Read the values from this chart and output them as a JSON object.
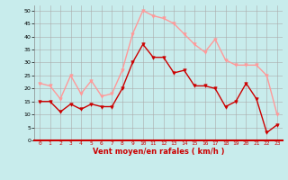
{
  "xlabel": "Vent moyen/en rafales ( km/h )",
  "x": [
    0,
    1,
    2,
    3,
    4,
    5,
    6,
    7,
    8,
    9,
    10,
    11,
    12,
    13,
    14,
    15,
    16,
    17,
    18,
    19,
    20,
    21,
    22,
    23
  ],
  "mean_wind": [
    15,
    15,
    11,
    14,
    12,
    14,
    13,
    13,
    20,
    30,
    37,
    32,
    32,
    26,
    27,
    21,
    21,
    20,
    13,
    15,
    22,
    16,
    3,
    6
  ],
  "gust_wind": [
    22,
    21,
    16,
    25,
    18,
    23,
    17,
    18,
    27,
    41,
    50,
    48,
    47,
    45,
    41,
    37,
    34,
    39,
    31,
    29,
    29,
    29,
    25,
    10
  ],
  "mean_color": "#cc0000",
  "gust_color": "#ff9999",
  "bg_color": "#c8ecec",
  "grid_color": "#aaaaaa",
  "ylim": [
    0,
    52
  ],
  "yticks": [
    0,
    5,
    10,
    15,
    20,
    25,
    30,
    35,
    40,
    45,
    50
  ],
  "xticks": [
    0,
    1,
    2,
    3,
    4,
    5,
    6,
    7,
    8,
    9,
    10,
    11,
    12,
    13,
    14,
    15,
    16,
    17,
    18,
    19,
    20,
    21,
    22,
    23
  ]
}
